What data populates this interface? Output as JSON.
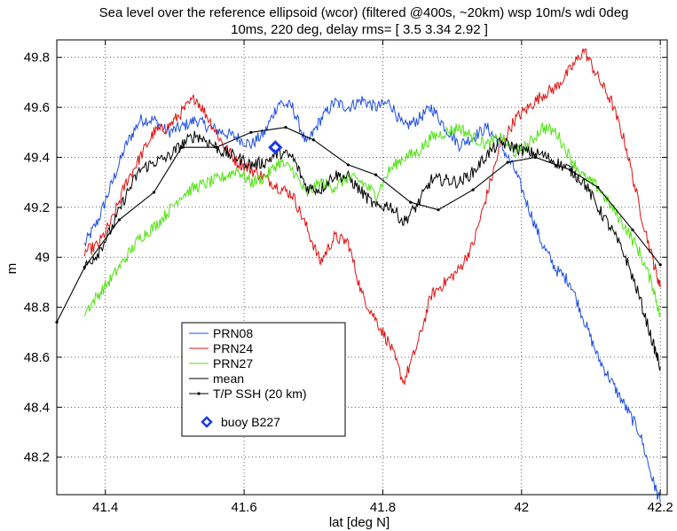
{
  "chart_data": {
    "type": "line",
    "title_line1": "Sea level over the reference ellipsoid (wcor) (filtered @400s, ~20km) wsp 10m/s wdi 0deg",
    "title_line2": "10ms, 220 deg, delay rms= [ 3.5        3.34        2.92 ]",
    "xlabel": "lat [deg N]",
    "ylabel": "m",
    "xlim": [
      41.33,
      42.21
    ],
    "ylim": [
      48.05,
      49.87
    ],
    "grid": "dotted",
    "legend_placement": "lower-center",
    "x_tick_labels": [
      "41.4",
      "41.6",
      "41.8",
      "42",
      "42.2"
    ],
    "x_ticks": [
      41.4,
      41.6,
      41.8,
      42.0,
      42.2
    ],
    "y_tick_labels": [
      "48.2",
      "48.4",
      "48.6",
      "48.8",
      "49",
      "49.2",
      "49.4",
      "49.6",
      "49.8"
    ],
    "y_ticks": [
      48.2,
      48.4,
      48.6,
      48.8,
      49.0,
      49.2,
      49.4,
      49.6,
      49.8
    ],
    "series": [
      {
        "name": "PRN08",
        "color": "#2050e0",
        "style": "noisy-line",
        "x": [
          41.37,
          41.39,
          41.41,
          41.43,
          41.45,
          41.47,
          41.49,
          41.51,
          41.53,
          41.55,
          41.57,
          41.59,
          41.61,
          41.63,
          41.65,
          41.67,
          41.69,
          41.71,
          41.73,
          41.75,
          41.77,
          41.79,
          41.81,
          41.83,
          41.85,
          41.87,
          41.89,
          41.91,
          41.93,
          41.95,
          41.97,
          41.99,
          42.01,
          42.03,
          42.05,
          42.07,
          42.09,
          42.11,
          42.13,
          42.15,
          42.17,
          42.19,
          42.2
        ],
        "values": [
          49.05,
          49.15,
          49.3,
          49.45,
          49.55,
          49.55,
          49.5,
          49.52,
          49.55,
          49.52,
          49.5,
          49.48,
          49.45,
          49.5,
          49.62,
          49.6,
          49.45,
          49.55,
          49.62,
          49.6,
          49.63,
          49.6,
          49.62,
          49.52,
          49.55,
          49.6,
          49.52,
          49.45,
          49.48,
          49.52,
          49.45,
          49.35,
          49.2,
          49.05,
          48.95,
          48.9,
          48.75,
          48.6,
          48.5,
          48.4,
          48.3,
          48.1,
          48.02
        ]
      },
      {
        "name": "PRN24",
        "color": "#e01010",
        "style": "noisy-line",
        "x": [
          41.37,
          41.39,
          41.41,
          41.43,
          41.45,
          41.47,
          41.49,
          41.51,
          41.53,
          41.55,
          41.57,
          41.59,
          41.61,
          41.63,
          41.65,
          41.67,
          41.69,
          41.71,
          41.73,
          41.75,
          41.77,
          41.79,
          41.81,
          41.83,
          41.85,
          41.87,
          41.89,
          41.91,
          41.93,
          41.95,
          41.97,
          41.99,
          42.01,
          42.03,
          42.05,
          42.07,
          42.09,
          42.11,
          42.13,
          42.15,
          42.17,
          42.19,
          42.2
        ],
        "values": [
          49.02,
          49.05,
          49.15,
          49.3,
          49.4,
          49.5,
          49.52,
          49.58,
          49.64,
          49.55,
          49.45,
          49.38,
          49.35,
          49.32,
          49.28,
          49.25,
          49.12,
          48.98,
          49.08,
          49.06,
          48.85,
          48.75,
          48.65,
          48.5,
          48.65,
          48.85,
          48.9,
          48.95,
          49.05,
          49.25,
          49.45,
          49.55,
          49.6,
          49.65,
          49.68,
          49.75,
          49.83,
          49.72,
          49.62,
          49.45,
          49.2,
          48.98,
          48.88
        ]
      },
      {
        "name": "PRN27",
        "color": "#50e010",
        "style": "noisy-line",
        "x": [
          41.37,
          41.39,
          41.41,
          41.43,
          41.45,
          41.47,
          41.49,
          41.51,
          41.53,
          41.55,
          41.57,
          41.59,
          41.61,
          41.63,
          41.65,
          41.67,
          41.69,
          41.71,
          41.73,
          41.75,
          41.77,
          41.79,
          41.81,
          41.83,
          41.85,
          41.87,
          41.89,
          41.91,
          41.93,
          41.95,
          41.97,
          41.99,
          42.01,
          42.03,
          42.05,
          42.07,
          42.09,
          42.11,
          42.13,
          42.15,
          42.17,
          42.19,
          42.2
        ],
        "values": [
          48.78,
          48.85,
          48.92,
          49.0,
          49.08,
          49.12,
          49.18,
          49.25,
          49.28,
          49.3,
          49.32,
          49.35,
          49.3,
          49.32,
          49.38,
          49.35,
          49.25,
          49.3,
          49.28,
          49.32,
          49.3,
          49.25,
          49.35,
          49.4,
          49.42,
          49.48,
          49.5,
          49.52,
          49.48,
          49.45,
          49.48,
          49.42,
          49.45,
          49.52,
          49.5,
          49.4,
          49.32,
          49.28,
          49.2,
          49.12,
          49.02,
          48.88,
          48.76
        ]
      },
      {
        "name": "mean",
        "color": "#000000",
        "style": "noisy-line",
        "x": [
          41.37,
          41.39,
          41.41,
          41.43,
          41.45,
          41.47,
          41.49,
          41.51,
          41.53,
          41.55,
          41.57,
          41.59,
          41.61,
          41.63,
          41.65,
          41.67,
          41.69,
          41.71,
          41.73,
          41.75,
          41.77,
          41.79,
          41.81,
          41.83,
          41.85,
          41.87,
          41.89,
          41.91,
          41.93,
          41.95,
          41.97,
          41.99,
          42.01,
          42.03,
          42.05,
          42.07,
          42.09,
          42.11,
          42.13,
          42.15,
          42.17,
          42.19,
          42.2
        ],
        "values": [
          48.96,
          49.02,
          49.12,
          49.25,
          49.35,
          49.38,
          49.4,
          49.45,
          49.49,
          49.46,
          49.42,
          49.4,
          49.37,
          49.38,
          49.42,
          49.4,
          49.28,
          49.27,
          49.33,
          49.32,
          49.26,
          49.2,
          49.21,
          49.14,
          49.21,
          49.31,
          49.31,
          49.3,
          49.34,
          49.41,
          49.46,
          49.44,
          49.42,
          49.41,
          49.38,
          49.35,
          49.3,
          49.2,
          49.11,
          49.0,
          48.84,
          48.65,
          48.56
        ]
      },
      {
        "name": "T/P SSH (20 km)",
        "color": "#000000",
        "style": "line-with-dots",
        "x": [
          41.33,
          41.37,
          41.42,
          41.47,
          41.51,
          41.56,
          41.61,
          41.66,
          41.7,
          41.75,
          41.79,
          41.84,
          41.88,
          41.93,
          41.98,
          42.02,
          42.07,
          42.11,
          42.16,
          42.2
        ],
        "values": [
          48.74,
          48.96,
          49.15,
          49.26,
          49.44,
          49.44,
          49.5,
          49.52,
          49.47,
          49.37,
          49.33,
          49.22,
          49.19,
          49.27,
          49.38,
          49.4,
          49.35,
          49.28,
          49.11,
          48.97
        ]
      }
    ],
    "annotations": [
      {
        "name": "buoy B227",
        "x": 41.645,
        "y": 49.44,
        "marker": "diamond",
        "color": "#1a3be8"
      }
    ]
  }
}
